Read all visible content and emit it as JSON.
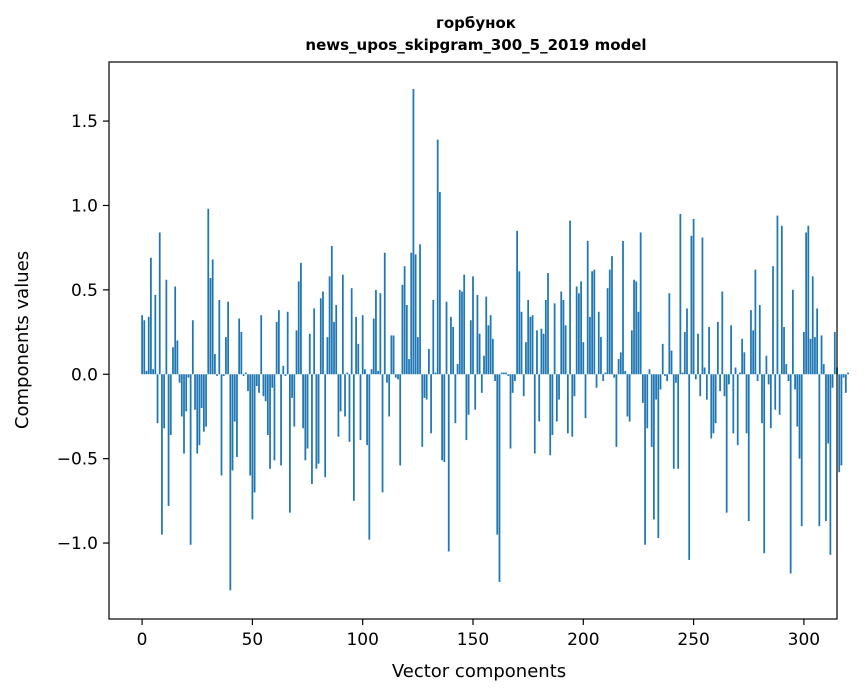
{
  "chart_data": {
    "type": "bar",
    "title_line1": "горбунок",
    "title_line2": "news_upos_skipgram_300_5_2019 model",
    "xlabel": "Vector components",
    "ylabel": "Components values",
    "xlim": [
      -15,
      315
    ],
    "ylim": [
      -1.45,
      1.85
    ],
    "xticks": [
      0,
      50,
      100,
      150,
      200,
      250,
      300
    ],
    "xtick_labels": [
      "0",
      "50",
      "100",
      "150",
      "200",
      "250",
      "300"
    ],
    "yticks": [
      -1.0,
      -0.5,
      0.0,
      0.5,
      1.0,
      1.5
    ],
    "ytick_labels": [
      "−1.0",
      "−0.5",
      "0.0",
      "0.5",
      "1.0",
      "1.5"
    ],
    "grid": false,
    "bar_color": "#1f77b4",
    "values": [
      0.35,
      0.32,
      0.02,
      0.34,
      0.69,
      0.03,
      0.47,
      -0.29,
      0.84,
      -0.95,
      -0.32,
      0.56,
      -0.78,
      -0.36,
      0.16,
      0.52,
      0.2,
      -0.05,
      -0.25,
      -0.47,
      -0.22,
      -0.02,
      -1.01,
      0.32,
      -0.21,
      -0.47,
      -0.42,
      -0.2,
      -0.34,
      -0.31,
      0.98,
      0.57,
      0.68,
      0.12,
      -0.01,
      0.44,
      -0.6,
      -0.01,
      0.22,
      0.43,
      -1.28,
      -0.57,
      -0.28,
      -0.49,
      0.33,
      0.25,
      -0.01,
      0.01,
      -0.1,
      -0.6,
      -0.86,
      -0.7,
      -0.07,
      -0.11,
      0.35,
      -0.13,
      -0.16,
      -0.36,
      -0.56,
      -0.08,
      -0.51,
      0.31,
      0.38,
      -0.54,
      0.05,
      -0.01,
      0.37,
      -0.82,
      -0.14,
      -0.31,
      0.26,
      0.55,
      0.66,
      -0.32,
      -0.51,
      -0.44,
      0.24,
      -0.65,
      0.39,
      -0.56,
      -0.53,
      0.45,
      0.49,
      -0.61,
      0.22,
      0.58,
      0.76,
      0.31,
      0.41,
      -0.37,
      -0.22,
      0.59,
      -0.25,
      0.01,
      -0.4,
      0.51,
      -0.75,
      0.34,
      0.18,
      -0.39,
      0.35,
      0.03,
      -0.42,
      -0.98,
      0.03,
      0.33,
      0.5,
      0.02,
      0.48,
      -0.7,
      0.72,
      -0.05,
      -0.25,
      0.23,
      0.23,
      -0.02,
      -0.03,
      -0.54,
      0.53,
      0.64,
      0.41,
      0.09,
      0.72,
      1.69,
      0.71,
      0.22,
      0.77,
      -0.43,
      -0.14,
      -0.15,
      0.15,
      -0.35,
      0.44,
      0.01,
      1.39,
      1.08,
      -0.51,
      -0.52,
      0.43,
      -1.05,
      0.34,
      0.28,
      -0.29,
      0.06,
      0.5,
      0.49,
      0.59,
      -0.39,
      -0.24,
      0.32,
      0.58,
      -0.21,
      0.47,
      0.24,
      -0.11,
      0.11,
      0.46,
      0.29,
      0.35,
      0.21,
      -0.04,
      -0.95,
      -1.23,
      0.01,
      0.01,
      0.01,
      -0.01,
      -0.44,
      -0.11,
      -0.04,
      0.85,
      0.61,
      0.37,
      -0.13,
      0.19,
      0.44,
      0.34,
      0.35,
      -0.47,
      0.26,
      -0.28,
      0.27,
      0.24,
      0.44,
      0.6,
      -0.48,
      -0.36,
      0.42,
      -0.28,
      -0.15,
      0.49,
      0.44,
      0.29,
      -0.35,
      0.91,
      -0.37,
      -0.13,
      0.52,
      0.48,
      0.55,
      0.19,
      -0.26,
      0.79,
      0.34,
      0.61,
      0.62,
      -0.08,
      0.37,
      0.22,
      -0.04,
      0.01,
      0.51,
      0.62,
      0.7,
      -0.02,
      -0.43,
      0.09,
      0.13,
      0.79,
      0.02,
      -0.25,
      -0.28,
      0.26,
      0.56,
      0.55,
      0.37,
      0.84,
      -0.17,
      -1.01,
      -0.32,
      0.03,
      -0.43,
      -0.86,
      -0.15,
      -0.97,
      -0.09,
      0.18,
      -0.01,
      -0.04,
      0.48,
      0.14,
      -0.56,
      -0.05,
      -0.56,
      0.95,
      0.01,
      0.25,
      0.39,
      -1.1,
      0.82,
      0.92,
      -0.03,
      0.24,
      -0.13,
      0.81,
      0.04,
      -0.15,
      0.28,
      -0.38,
      -0.35,
      -0.29,
      0.31,
      -0.1,
      0.49,
      -0.13,
      -0.82,
      -0.06,
      0.29,
      -0.35,
      0.04,
      -0.42,
      0.01,
      0.21,
      0.13,
      -0.35,
      -0.87,
      0.38,
      0.26,
      0.62,
      -0.04,
      0.41,
      -0.29,
      -1.06,
      0.11,
      -0.06,
      -0.32,
      0.64,
      -0.21,
      0.94,
      -0.24,
      0.88,
      0.28,
      0.06,
      -0.04,
      -1.18,
      0.5,
      -0.09,
      -0.31,
      -0.5,
      -0.9,
      0.25,
      0.84,
      0.88,
      0.21,
      0.58,
      0.22,
      0.39,
      -0.9,
      0.23,
      0.06,
      -0.87,
      -0.41,
      -1.07,
      -0.08,
      0.25,
      0.04,
      -0.58,
      -0.54,
      -0.02,
      -0.11,
      0.01
    ]
  }
}
